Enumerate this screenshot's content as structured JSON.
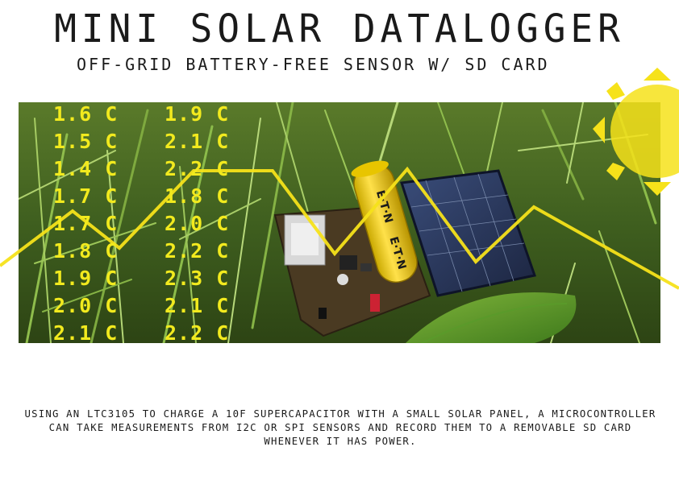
{
  "title": "MINI SOLAR DATALOGGER",
  "subtitle": "OFF-GRID BATTERY-FREE SENSOR W/ SD CARD",
  "supercap_brand": "E·T·N",
  "temperatures_col1": [
    "1.6 C",
    "1.5 C",
    "1.4 C",
    "1.7 C",
    "1.7 C",
    "1.8 C",
    "1.9 C",
    "2.0 C",
    "2.1 C"
  ],
  "temperatures_col2": [
    "1.9 C",
    "2.1 C",
    "2.2 C",
    "1.8 C",
    "2.0 C",
    "2.2 C",
    "2.3 C",
    "2.1 C",
    "2.2 C"
  ],
  "description": "USING AN LTC3105 TO CHARGE A 10F SUPERCAPACITOR WITH A SMALL SOLAR PANEL, A MICROCONTROLLER CAN TAKE MEASUREMENTS FROM I2C OR SPI SENSORS AND RECORD THEM TO A REMOVABLE SD CARD WHENEVER IT HAS POWER.",
  "colors": {
    "accent_yellow": "#f6e21a",
    "text_dark": "#1a1a1a",
    "grass_green": "#3d5a1c"
  }
}
